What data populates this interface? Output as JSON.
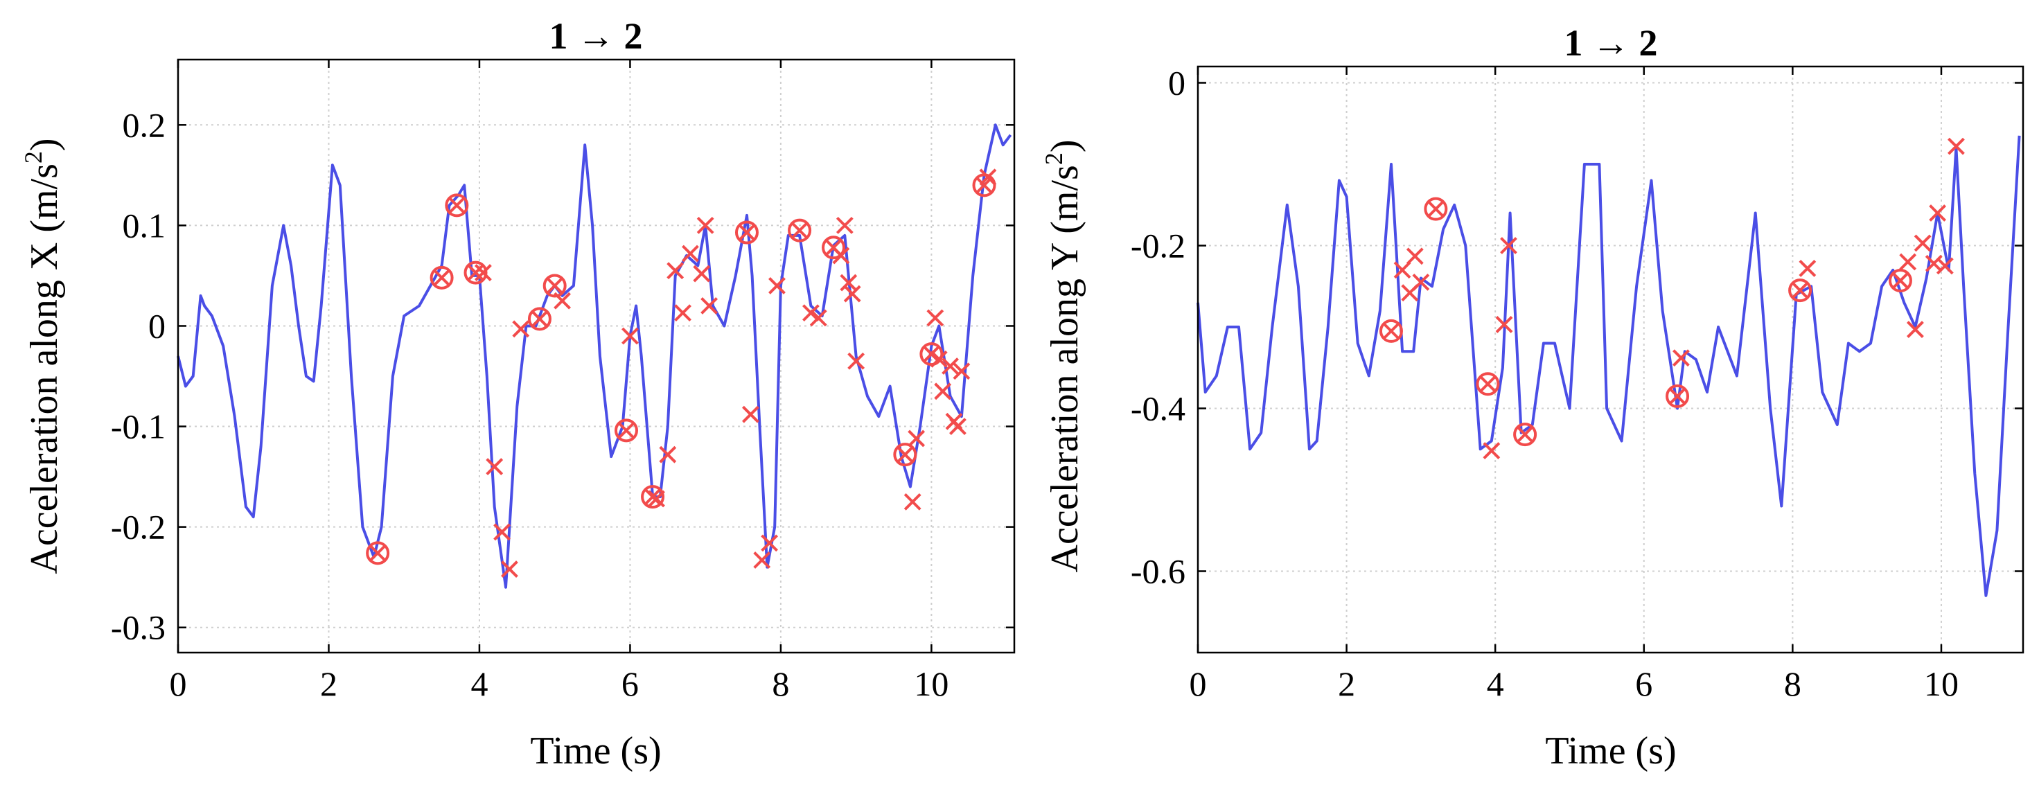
{
  "chart_data": [
    {
      "type": "line",
      "title": "1 → 2",
      "xlabel": "Time (s)",
      "ylabel": "Acceleration along X (m/s²)",
      "ylabel_main": "Acceleration along X (m/s",
      "ylabel_sup": "2",
      "ylabel_end": ")",
      "xlim": [
        0,
        11.1
      ],
      "ylim": [
        -0.325,
        0.265
      ],
      "xticks": [
        0,
        2,
        4,
        6,
        8,
        10
      ],
      "yticks": [
        -0.3,
        -0.2,
        -0.1,
        0,
        0.1,
        0.2
      ],
      "xticklabels": [
        "0",
        "2",
        "4",
        "6",
        "8",
        "10"
      ],
      "yticklabels": [
        "-0.3",
        "-0.2",
        "-0.1",
        "0",
        "0.1",
        "0.2"
      ],
      "grid": true,
      "series": [
        {
          "name": "acceleration",
          "color": "#4a4ee6",
          "x": [
            0,
            0.1,
            0.2,
            0.3,
            0.35,
            0.45,
            0.6,
            0.75,
            0.9,
            1.0,
            1.1,
            1.25,
            1.4,
            1.5,
            1.6,
            1.7,
            1.8,
            1.9,
            2.05,
            2.15,
            2.3,
            2.45,
            2.6,
            2.7,
            2.85,
            3.0,
            3.2,
            3.35,
            3.5,
            3.6,
            3.72,
            3.8,
            3.9,
            4.0,
            4.1,
            4.2,
            4.35,
            4.5,
            4.62,
            4.75,
            4.9,
            5.0,
            5.1,
            5.25,
            5.4,
            5.5,
            5.6,
            5.75,
            5.9,
            6.0,
            6.08,
            6.15,
            6.3,
            6.4,
            6.5,
            6.6,
            6.75,
            6.9,
            7.0,
            7.1,
            7.25,
            7.4,
            7.55,
            7.62,
            7.72,
            7.82,
            7.92,
            8.0,
            8.1,
            8.25,
            8.4,
            8.55,
            8.7,
            8.85,
            9.0,
            9.15,
            9.3,
            9.45,
            9.6,
            9.72,
            9.85,
            10.0,
            10.1,
            10.25,
            10.4,
            10.55,
            10.7,
            10.85,
            10.95,
            11.05
          ],
          "y": [
            -0.03,
            -0.06,
            -0.05,
            0.03,
            0.02,
            0.01,
            -0.02,
            -0.09,
            -0.18,
            -0.19,
            -0.12,
            0.04,
            0.1,
            0.06,
            0.0,
            -0.05,
            -0.055,
            0.02,
            0.16,
            0.14,
            -0.05,
            -0.2,
            -0.23,
            -0.2,
            -0.05,
            0.01,
            0.02,
            0.04,
            0.06,
            0.12,
            0.13,
            0.14,
            0.05,
            0.05,
            -0.05,
            -0.18,
            -0.26,
            -0.08,
            0.0,
            0.0,
            0.03,
            0.04,
            0.03,
            0.04,
            0.18,
            0.1,
            -0.03,
            -0.13,
            -0.1,
            -0.01,
            0.02,
            -0.03,
            -0.17,
            -0.17,
            -0.1,
            0.05,
            0.07,
            0.06,
            0.1,
            0.02,
            0.0,
            0.05,
            0.11,
            0.05,
            -0.1,
            -0.24,
            -0.2,
            0.04,
            0.09,
            0.09,
            0.02,
            0.01,
            0.08,
            0.09,
            -0.03,
            -0.07,
            -0.09,
            -0.06,
            -0.13,
            -0.16,
            -0.1,
            -0.02,
            0.0,
            -0.07,
            -0.09,
            0.05,
            0.15,
            0.2,
            0.18,
            0.19
          ]
        }
      ],
      "circle_markers": [
        [
          2.65,
          -0.226
        ],
        [
          3.5,
          0.048
        ],
        [
          3.7,
          0.12
        ],
        [
          3.95,
          0.053
        ],
        [
          4.8,
          0.007
        ],
        [
          5.0,
          0.04
        ],
        [
          5.95,
          -0.104
        ],
        [
          6.3,
          -0.17
        ],
        [
          7.55,
          0.093
        ],
        [
          8.25,
          0.095
        ],
        [
          8.7,
          0.078
        ],
        [
          9.65,
          -0.128
        ],
        [
          10.0,
          -0.028
        ],
        [
          10.7,
          0.14
        ]
      ],
      "cross_markers": [
        [
          2.65,
          -0.226
        ],
        [
          3.5,
          0.048
        ],
        [
          3.7,
          0.12
        ],
        [
          3.95,
          0.053
        ],
        [
          4.05,
          0.053
        ],
        [
          4.2,
          -0.14
        ],
        [
          4.3,
          -0.205
        ],
        [
          4.4,
          -0.242
        ],
        [
          4.55,
          -0.003
        ],
        [
          4.8,
          0.007
        ],
        [
          5.0,
          0.04
        ],
        [
          5.1,
          0.025
        ],
        [
          5.95,
          -0.104
        ],
        [
          6.0,
          -0.01
        ],
        [
          6.3,
          -0.17
        ],
        [
          6.35,
          -0.172
        ],
        [
          6.5,
          -0.128
        ],
        [
          6.6,
          0.055
        ],
        [
          6.7,
          0.013
        ],
        [
          6.8,
          0.072
        ],
        [
          6.95,
          0.052
        ],
        [
          7.0,
          0.1
        ],
        [
          7.05,
          0.02
        ],
        [
          7.55,
          0.093
        ],
        [
          7.6,
          -0.088
        ],
        [
          7.75,
          -0.233
        ],
        [
          7.85,
          -0.216
        ],
        [
          7.95,
          0.04
        ],
        [
          8.25,
          0.095
        ],
        [
          8.4,
          0.013
        ],
        [
          8.5,
          0.008
        ],
        [
          8.7,
          0.078
        ],
        [
          8.8,
          0.07
        ],
        [
          8.85,
          0.1
        ],
        [
          8.9,
          0.043
        ],
        [
          8.95,
          0.032
        ],
        [
          9.0,
          -0.035
        ],
        [
          9.65,
          -0.128
        ],
        [
          9.75,
          -0.175
        ],
        [
          9.8,
          -0.112
        ],
        [
          10.0,
          -0.028
        ],
        [
          10.05,
          0.008
        ],
        [
          10.1,
          -0.033
        ],
        [
          10.15,
          -0.065
        ],
        [
          10.25,
          -0.04
        ],
        [
          10.3,
          -0.095
        ],
        [
          10.35,
          -0.1
        ],
        [
          10.4,
          -0.045
        ],
        [
          10.7,
          0.14
        ],
        [
          10.75,
          0.148
        ]
      ]
    },
    {
      "type": "line",
      "title": "1 → 2",
      "xlabel": "Time (s)",
      "ylabel": "Acceleration along Y (m/s²)",
      "ylabel_main": "Acceleration along Y (m/s",
      "ylabel_sup": "2",
      "ylabel_end": ")",
      "xlim": [
        0,
        11.1
      ],
      "ylim": [
        -0.7,
        0.02
      ],
      "xticks": [
        0,
        2,
        4,
        6,
        8,
        10
      ],
      "yticks": [
        -0.6,
        -0.4,
        -0.2,
        0
      ],
      "xticklabels": [
        "0",
        "2",
        "4",
        "6",
        "8",
        "10"
      ],
      "yticklabels": [
        "-0.6",
        "-0.4",
        "-0.2",
        "0"
      ],
      "grid": true,
      "series": [
        {
          "name": "acceleration",
          "color": "#4a4ee6",
          "x": [
            0,
            0.1,
            0.25,
            0.4,
            0.55,
            0.7,
            0.85,
            1.0,
            1.2,
            1.35,
            1.5,
            1.6,
            1.75,
            1.9,
            2.0,
            2.15,
            2.3,
            2.45,
            2.6,
            2.75,
            2.9,
            3.0,
            3.15,
            3.3,
            3.45,
            3.6,
            3.8,
            3.95,
            4.1,
            4.2,
            4.35,
            4.5,
            4.65,
            4.8,
            5.0,
            5.2,
            5.4,
            5.5,
            5.7,
            5.9,
            6.1,
            6.25,
            6.45,
            6.55,
            6.7,
            6.85,
            7.0,
            7.25,
            7.5,
            7.7,
            7.85,
            8.05,
            8.25,
            8.4,
            8.6,
            8.75,
            8.9,
            9.05,
            9.2,
            9.35,
            9.5,
            9.65,
            9.8,
            9.95,
            10.1,
            10.2,
            10.3,
            10.45,
            10.6,
            10.75,
            10.9,
            11.05
          ],
          "y": [
            -0.27,
            -0.38,
            -0.36,
            -0.3,
            -0.3,
            -0.45,
            -0.43,
            -0.3,
            -0.15,
            -0.25,
            -0.45,
            -0.44,
            -0.3,
            -0.12,
            -0.14,
            -0.32,
            -0.36,
            -0.28,
            -0.1,
            -0.33,
            -0.33,
            -0.24,
            -0.25,
            -0.18,
            -0.15,
            -0.2,
            -0.45,
            -0.44,
            -0.35,
            -0.16,
            -0.43,
            -0.42,
            -0.32,
            -0.32,
            -0.4,
            -0.1,
            -0.1,
            -0.4,
            -0.44,
            -0.25,
            -0.12,
            -0.28,
            -0.4,
            -0.33,
            -0.34,
            -0.38,
            -0.3,
            -0.36,
            -0.16,
            -0.4,
            -0.52,
            -0.26,
            -0.25,
            -0.38,
            -0.42,
            -0.32,
            -0.33,
            -0.32,
            -0.25,
            -0.23,
            -0.27,
            -0.3,
            -0.24,
            -0.16,
            -0.23,
            -0.08,
            -0.25,
            -0.48,
            -0.63,
            -0.55,
            -0.3,
            -0.065
          ]
        }
      ],
      "circle_markers": [
        [
          2.6,
          -0.305
        ],
        [
          3.2,
          -0.155
        ],
        [
          3.9,
          -0.37
        ],
        [
          4.4,
          -0.432
        ],
        [
          6.45,
          -0.385
        ],
        [
          8.1,
          -0.255
        ],
        [
          9.45,
          -0.243
        ]
      ],
      "cross_markers": [
        [
          2.6,
          -0.305
        ],
        [
          2.75,
          -0.23
        ],
        [
          2.85,
          -0.258
        ],
        [
          2.92,
          -0.213
        ],
        [
          3.0,
          -0.245
        ],
        [
          3.2,
          -0.155
        ],
        [
          3.9,
          -0.37
        ],
        [
          3.95,
          -0.452
        ],
        [
          4.12,
          -0.297
        ],
        [
          4.18,
          -0.2
        ],
        [
          4.4,
          -0.432
        ],
        [
          6.45,
          -0.385
        ],
        [
          6.5,
          -0.338
        ],
        [
          8.1,
          -0.255
        ],
        [
          8.2,
          -0.228
        ],
        [
          9.45,
          -0.243
        ],
        [
          9.55,
          -0.22
        ],
        [
          9.65,
          -0.303
        ],
        [
          9.75,
          -0.197
        ],
        [
          9.9,
          -0.222
        ],
        [
          9.95,
          -0.16
        ],
        [
          10.05,
          -0.225
        ],
        [
          10.2,
          -0.078
        ]
      ]
    }
  ]
}
